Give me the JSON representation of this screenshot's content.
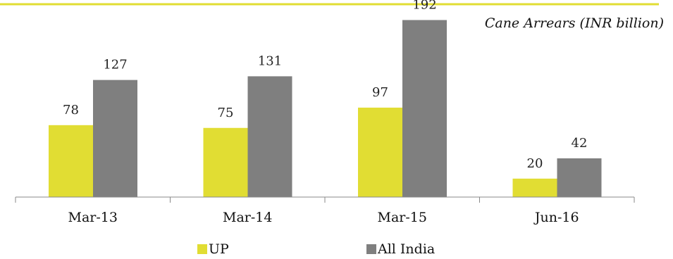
{
  "chart_data": {
    "type": "bar",
    "title": "Cane Arrears (INR billion)",
    "categories": [
      "Mar-13",
      "Mar-14",
      "Mar-15",
      "Jun-16"
    ],
    "series": [
      {
        "name": "UP",
        "values": [
          78,
          75,
          97,
          20
        ]
      },
      {
        "name": "All India",
        "values": [
          127,
          131,
          192,
          42
        ]
      }
    ],
    "ylim": [
      0,
      200
    ],
    "grid": false,
    "legend": "bottom",
    "colors": {
      "UP": "#e1dd33",
      "All India": "#7f7f7f",
      "accent_line": "#e1dd33",
      "axis": "#888888"
    }
  }
}
